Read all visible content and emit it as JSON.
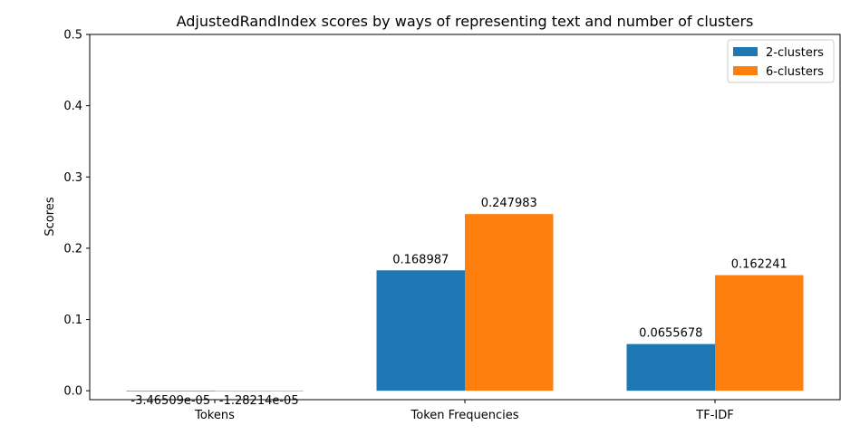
{
  "chart_data": {
    "type": "bar",
    "title": "AdjustedRandIndex scores by ways of representing text and number of clusters",
    "xlabel": "",
    "ylabel": "Scores",
    "categories": [
      "Tokens",
      "Token Frequencies",
      "TF-IDF"
    ],
    "series": [
      {
        "name": "2-clusters",
        "color": "#1f77b4",
        "values": [
          -3.46509e-05,
          0.168987,
          0.0655678
        ],
        "labels": [
          "-3.46509e-05",
          "0.168987",
          "0.0655678"
        ]
      },
      {
        "name": "6-clusters",
        "color": "#ff7f0e",
        "values": [
          -1.28214e-05,
          0.247983,
          0.162241
        ],
        "labels": [
          "-1.28214e-05",
          "0.247983",
          "0.162241"
        ]
      }
    ],
    "ylim": [
      -0.0125,
      0.5
    ],
    "yticks": [
      "0.0",
      "0.1",
      "0.2",
      "0.3",
      "0.4",
      "0.5"
    ],
    "ytick_values": [
      0.0,
      0.1,
      0.2,
      0.3,
      0.4,
      0.5
    ],
    "grid": false,
    "legend_position": "top-right"
  }
}
